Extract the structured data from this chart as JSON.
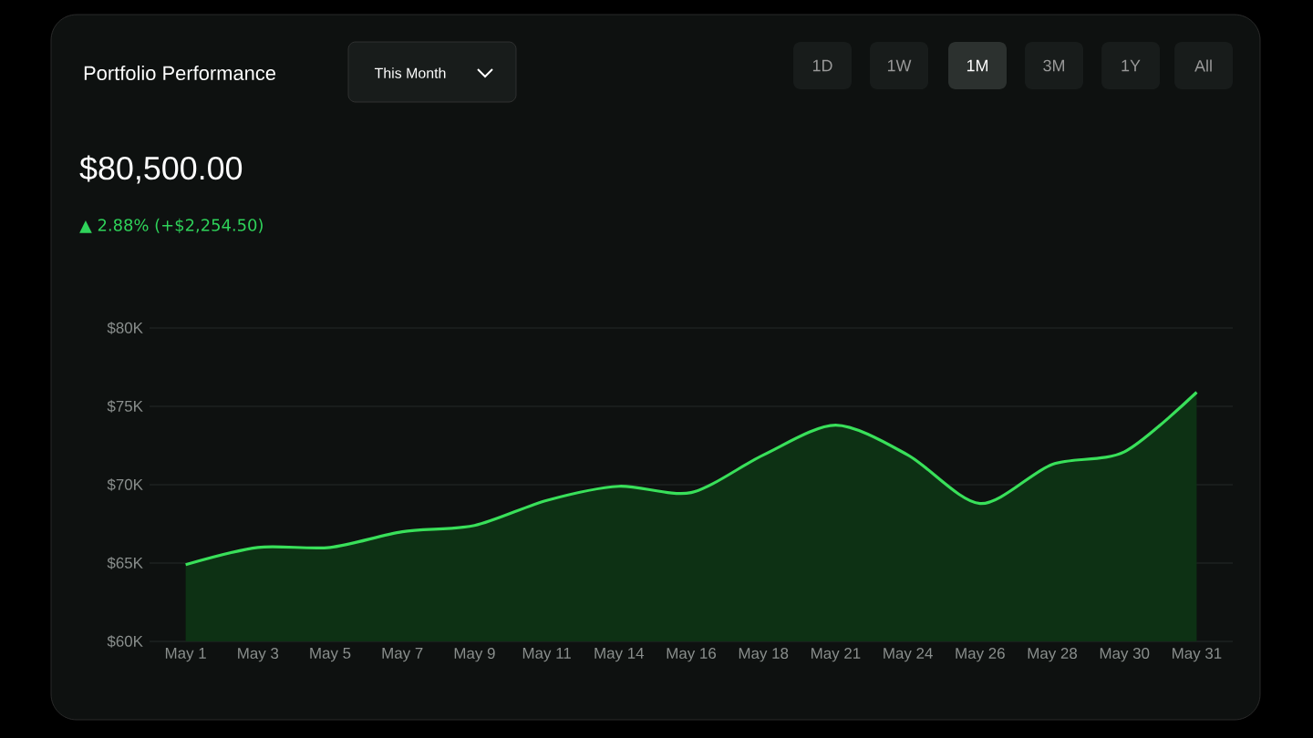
{
  "chart_data": {
    "type": "area",
    "title": "Portfolio Performance",
    "subtitle": "$80,500.00",
    "annotations": [
      "This Month",
      "1D",
      "1W",
      "1M",
      "3M",
      "1Y",
      "All",
      "▲ 2.88% (+$2,254.50)"
    ],
    "categories": [
      "May 1",
      "May 3",
      "May 5",
      "May 7",
      "May 9",
      "May 11",
      "May 14",
      "May 16",
      "May 18",
      "May 21",
      "May 24",
      "May 26",
      "May 28",
      "May 30",
      "May 31"
    ],
    "series": [
      {
        "color": "#39e05a",
        "values": [
          64.9,
          66.0,
          66.0,
          67.0,
          67.4,
          69.0,
          69.9,
          69.5,
          71.9,
          73.8,
          71.9,
          68.8,
          71.3,
          72.1,
          75.9
        ]
      }
    ],
    "ylim": [
      60,
      80
    ],
    "yticks": [
      {
        "value": 60,
        "label": "$60K"
      },
      {
        "value": 65,
        "label": "$65K"
      },
      {
        "value": 70,
        "label": "$70K"
      },
      {
        "value": 75,
        "label": "$75K"
      },
      {
        "value": 80,
        "label": "$80K"
      }
    ],
    "grid": "y",
    "marker": "none",
    "line_style": "solid"
  }
}
